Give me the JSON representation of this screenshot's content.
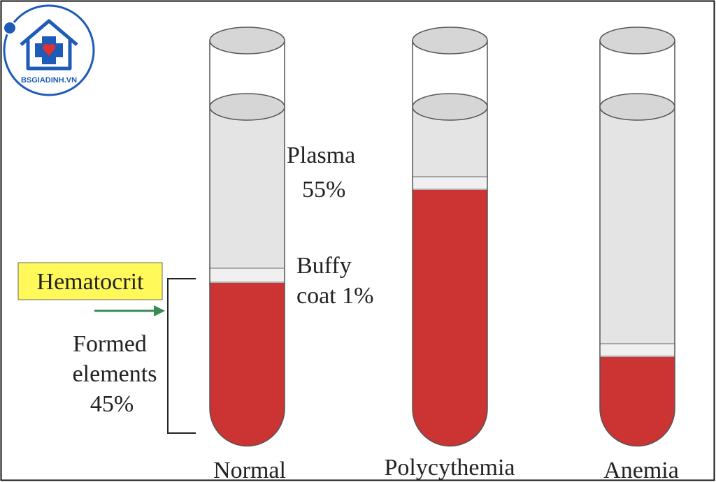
{
  "logo": {
    "text": "BSGIADINH.VN"
  },
  "hematocrit_label": "Hematocrit",
  "annotations": {
    "plasma": [
      "Plasma",
      "55%"
    ],
    "buffy_coat": [
      "Buffy",
      "coat 1%"
    ],
    "formed_elements": [
      "Formed",
      "elements",
      "45%"
    ]
  },
  "tubes": [
    {
      "label": "Normal"
    },
    {
      "label": "Polycythemia"
    },
    {
      "label": "Anemia"
    }
  ]
}
